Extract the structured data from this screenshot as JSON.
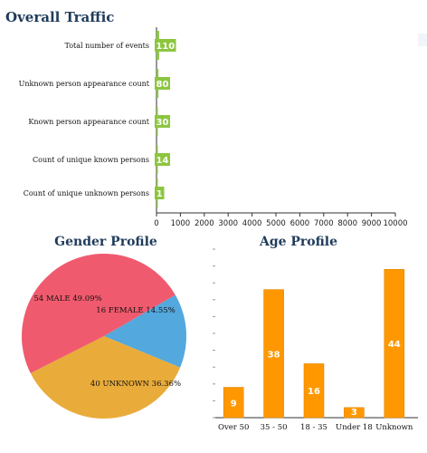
{
  "traffic": {
    "title": "Overall Traffic",
    "chart_data": {
      "type": "bar",
      "orientation": "horizontal",
      "categories": [
        "Total number of events",
        "Unknown person appearance count",
        "Known person appearance count",
        "Count of unique known persons",
        "Count of unique unknown persons"
      ],
      "values": [
        110,
        80,
        30,
        14,
        1
      ],
      "xlim": [
        0,
        10000
      ],
      "xticks": [
        0,
        1000,
        2000,
        3000,
        4000,
        5000,
        6000,
        7000,
        8000,
        9000,
        10000
      ],
      "bar_color": "#8cc63f"
    }
  },
  "gender": {
    "title": "Gender Profile",
    "chart_data": {
      "type": "pie",
      "slices": [
        {
          "label": "16 FEMALE 14.55%",
          "value": 16,
          "color": "#53a8dd"
        },
        {
          "label": "40 UNKNOWN 36.36%",
          "value": 40,
          "color": "#e9ab3a"
        },
        {
          "label": "54 MALE 49.09%",
          "value": 54,
          "color": "#f05a6e"
        }
      ]
    }
  },
  "age": {
    "title": "Age Profile",
    "chart_data": {
      "type": "bar",
      "categories": [
        "Over 50",
        "35 - 50",
        "18 - 35",
        "Under 18",
        "Unknown"
      ],
      "values": [
        9,
        38,
        16,
        3,
        44
      ],
      "ylim": [
        0,
        50
      ],
      "bar_color": "#ff9800"
    }
  }
}
